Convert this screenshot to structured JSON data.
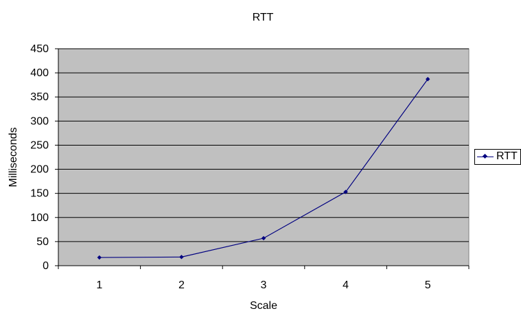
{
  "chart_data": {
    "type": "line",
    "title": "RTT",
    "xlabel": "Scale",
    "ylabel": "Milliseconds",
    "categories": [
      "1",
      "2",
      "3",
      "4",
      "5"
    ],
    "series": [
      {
        "name": "RTT",
        "values": [
          17,
          18,
          57,
          153,
          387
        ]
      }
    ],
    "ylim": [
      0,
      450
    ],
    "yticks": [
      "0",
      "50",
      "100",
      "150",
      "200",
      "250",
      "300",
      "350",
      "400",
      "450"
    ],
    "grid": "horizontal",
    "legend": "right",
    "colors": {
      "plot_background": "#c0c0c0",
      "series": "#000080",
      "gridline": "#000000"
    }
  }
}
